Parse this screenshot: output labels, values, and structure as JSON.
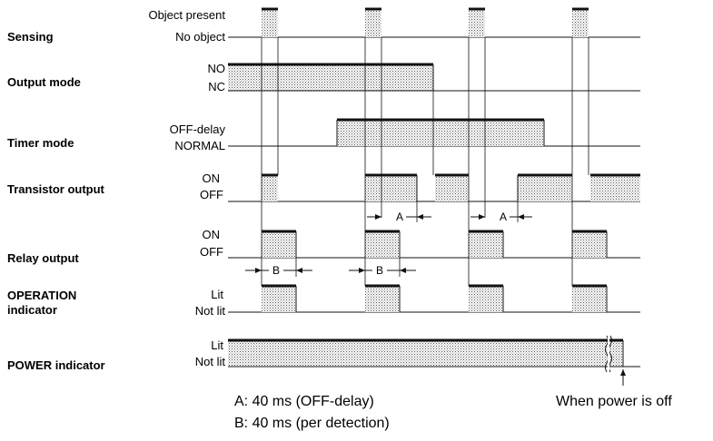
{
  "rows": {
    "sensing": {
      "label": "Sensing",
      "high": "Object present",
      "low": "No object"
    },
    "output_mode": {
      "label": "Output mode",
      "high": "NO",
      "low": "NC"
    },
    "timer_mode": {
      "label": "Timer mode",
      "high": "OFF-delay",
      "low": "NORMAL"
    },
    "transistor": {
      "label": "Transistor output",
      "high": "ON",
      "low": "OFF"
    },
    "relay": {
      "label": "Relay output",
      "high": "ON",
      "low": "OFF"
    },
    "operation": {
      "label_line1": "OPERATION",
      "label_line2": "indicator",
      "high": "Lit",
      "low": "Not lit"
    },
    "power": {
      "label": "POWER indicator",
      "high": "Lit",
      "low": "Not lit"
    }
  },
  "dimensions": {
    "a": "A",
    "b": "B"
  },
  "notes": {
    "a": "A: 40 ms (OFF-delay)",
    "b": "B: 40 ms (per detection)",
    "power_off": "When power is off"
  },
  "colors": {
    "line": "#111111",
    "fill_dots": "#555555"
  }
}
